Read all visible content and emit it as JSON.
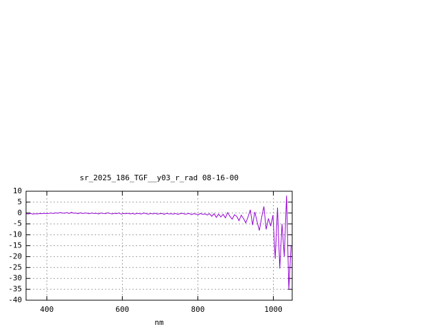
{
  "chart_data": {
    "type": "line",
    "title": "sr_2025_186_TGF__y03_r_rad 08-16-00",
    "x_label": "nm",
    "xlim": [
      345,
      1050
    ],
    "ylim": [
      -40,
      10
    ],
    "xticks": [
      400,
      600,
      800,
      1000
    ],
    "yticks": [
      -40,
      -35,
      -30,
      -25,
      -20,
      -15,
      -10,
      -5,
      0,
      5,
      10
    ],
    "grid": true,
    "x": [
      345,
      351,
      357,
      363,
      369,
      375,
      381,
      387,
      393,
      399,
      405,
      411,
      417,
      423,
      429,
      435,
      441,
      447,
      453,
      459,
      465,
      471,
      477,
      483,
      489,
      495,
      501,
      507,
      513,
      519,
      525,
      531,
      537,
      543,
      549,
      555,
      561,
      567,
      573,
      579,
      585,
      591,
      597,
      603,
      609,
      615,
      621,
      627,
      633,
      639,
      645,
      651,
      657,
      663,
      669,
      675,
      681,
      687,
      693,
      699,
      705,
      711,
      717,
      723,
      729,
      735,
      741,
      747,
      753,
      759,
      765,
      771,
      777,
      783,
      789,
      795,
      801,
      807,
      813,
      819,
      825,
      831,
      837,
      843,
      849,
      855,
      861,
      867,
      873,
      879,
      885,
      891,
      897,
      903,
      909,
      915,
      921,
      927,
      933,
      939,
      945,
      951,
      957,
      963,
      969,
      975,
      981,
      987,
      993,
      999,
      1005,
      1011,
      1017,
      1023,
      1029,
      1035,
      1041,
      1047
    ],
    "series": [
      {
        "color": "#9400d3",
        "values": [
          -0.3,
          -0.4,
          -0.2,
          -0.5,
          -0.3,
          -0.4,
          -0.2,
          -0.3,
          -0.1,
          -0.3,
          -0.2,
          0.0,
          -0.2,
          0.1,
          -0.1,
          0.2,
          0.0,
          -0.1,
          0.2,
          -0.2,
          0.3,
          -0.1,
          0.0,
          -0.3,
          0.1,
          -0.2,
          0.0,
          -0.1,
          -0.3,
          0.0,
          -0.2,
          -0.1,
          -0.4,
          0.0,
          -0.2,
          -0.3,
          0.1,
          -0.2,
          -0.4,
          -0.1,
          -0.3,
          0.0,
          -0.5,
          -0.2,
          -0.3,
          -0.1,
          -0.4,
          -0.2,
          -0.5,
          -0.1,
          -0.3,
          -0.4,
          0.0,
          -0.3,
          -0.5,
          -0.2,
          -0.4,
          -0.1,
          -0.5,
          -0.3,
          -0.2,
          -0.6,
          -0.1,
          -0.4,
          -0.3,
          -0.5,
          -0.2,
          -0.6,
          -0.3,
          -0.1,
          -0.5,
          -0.4,
          -0.2,
          -0.7,
          -0.3,
          -0.5,
          -0.8,
          -0.2,
          -0.6,
          -0.4,
          -0.9,
          -0.3,
          -1.5,
          -0.3,
          -2.0,
          -0.5,
          -1.8,
          -0.6,
          -2.2,
          0.2,
          -1.5,
          -2.8,
          -0.8,
          -1.5,
          -3.5,
          -1.0,
          -2.5,
          -4.5,
          -1.8,
          1.5,
          -5.5,
          0.5,
          -4.0,
          -8.0,
          -2.0,
          3.0,
          -7.5,
          -2.5,
          -6.0,
          -1.0,
          -21.0,
          2.5,
          -25.5,
          -5.0,
          -20.0,
          8.0,
          -35.0,
          -15.0
        ]
      }
    ]
  }
}
